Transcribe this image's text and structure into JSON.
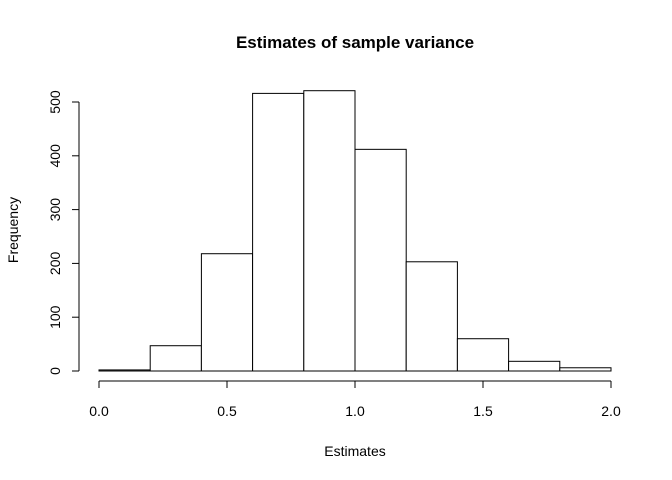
{
  "chart_data": {
    "type": "bar",
    "title": "Estimates of sample variance",
    "xlabel": "Estimates",
    "ylabel": "Frequency",
    "bins": [
      {
        "x0": 0.0,
        "x1": 0.2,
        "count": 2
      },
      {
        "x0": 0.2,
        "x1": 0.4,
        "count": 47
      },
      {
        "x0": 0.4,
        "x1": 0.6,
        "count": 218
      },
      {
        "x0": 0.6,
        "x1": 0.8,
        "count": 516
      },
      {
        "x0": 0.8,
        "x1": 1.0,
        "count": 521
      },
      {
        "x0": 1.0,
        "x1": 1.2,
        "count": 412
      },
      {
        "x0": 1.2,
        "x1": 1.4,
        "count": 203
      },
      {
        "x0": 1.4,
        "x1": 1.6,
        "count": 60
      },
      {
        "x0": 1.6,
        "x1": 1.8,
        "count": 18
      },
      {
        "x0": 1.8,
        "x1": 2.0,
        "count": 6
      }
    ],
    "xlim": [
      0.0,
      2.0
    ],
    "ylim": [
      0,
      500
    ],
    "x_ticks": [
      0.0,
      0.5,
      1.0,
      1.5,
      2.0
    ],
    "x_tick_labels": [
      "0.0",
      "0.5",
      "1.0",
      "1.5",
      "2.0"
    ],
    "y_ticks": [
      0,
      100,
      200,
      300,
      400,
      500
    ],
    "y_tick_labels": [
      "0",
      "100",
      "200",
      "300",
      "400",
      "500"
    ],
    "grid": false,
    "bar_fill": "#ffffff",
    "bar_stroke": "#000000"
  }
}
